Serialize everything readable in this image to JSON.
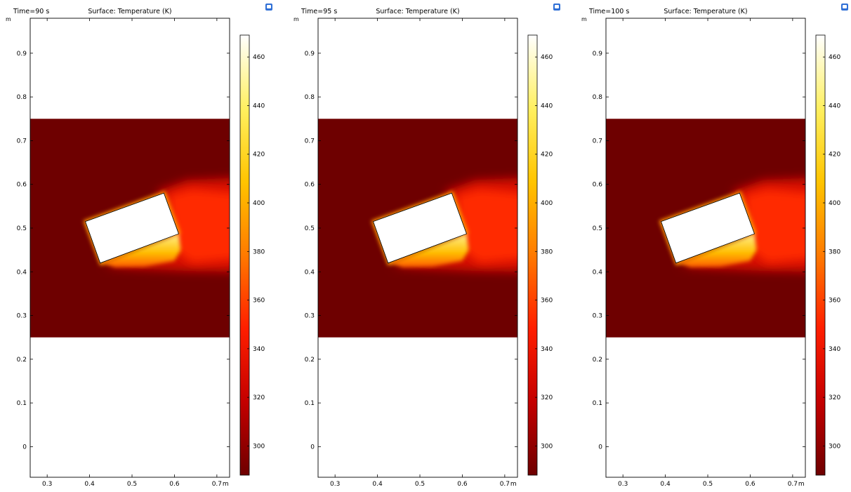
{
  "chart_data": [
    {
      "type": "heatmap",
      "time_label": "Time=90 s",
      "title": "Surface: Temperature (K)",
      "unit_label": "m",
      "x_ticks": [
        0.3,
        0.4,
        0.5,
        0.6,
        0.7
      ],
      "y_ticks": [
        0,
        0.1,
        0.2,
        0.3,
        0.4,
        0.5,
        0.6,
        0.7,
        0.8,
        0.9
      ],
      "xlim": [
        0.26,
        0.73
      ],
      "ylim": [
        -0.07,
        0.98
      ],
      "colorbar_ticks": [
        300,
        320,
        340,
        360,
        380,
        400,
        420,
        440,
        460
      ],
      "colorbar_range": [
        288,
        469
      ],
      "colormap": [
        "#6e0000",
        "#c40000",
        "#ff1e00",
        "#ff7a00",
        "#ffc400",
        "#fff060",
        "#ffffff"
      ],
      "domain": {
        "x": [
          0.26,
          0.73
        ],
        "y": [
          0.25,
          0.75
        ],
        "ambient_temperature": 293
      },
      "obstacle": {
        "polygon": [
          [
            0.39,
            0.515
          ],
          [
            0.575,
            0.58
          ],
          [
            0.61,
            0.487
          ],
          [
            0.425,
            0.42
          ]
        ],
        "temperature": 469
      }
    },
    {
      "type": "heatmap",
      "time_label": "Time=95 s",
      "title": "Surface: Temperature (K)",
      "unit_label": "m",
      "x_ticks": [
        0.3,
        0.4,
        0.5,
        0.6,
        0.7
      ],
      "y_ticks": [
        0,
        0.1,
        0.2,
        0.3,
        0.4,
        0.5,
        0.6,
        0.7,
        0.8,
        0.9
      ],
      "xlim": [
        0.26,
        0.73
      ],
      "ylim": [
        -0.07,
        0.98
      ],
      "colorbar_ticks": [
        300,
        320,
        340,
        360,
        380,
        400,
        420,
        440,
        460
      ],
      "colorbar_range": [
        288,
        469
      ],
      "colormap": [
        "#6e0000",
        "#c40000",
        "#ff1e00",
        "#ff7a00",
        "#ffc400",
        "#fff060",
        "#ffffff"
      ],
      "domain": {
        "x": [
          0.26,
          0.73
        ],
        "y": [
          0.25,
          0.75
        ],
        "ambient_temperature": 293
      },
      "obstacle": {
        "polygon": [
          [
            0.39,
            0.515
          ],
          [
            0.575,
            0.58
          ],
          [
            0.61,
            0.487
          ],
          [
            0.425,
            0.42
          ]
        ],
        "temperature": 469
      }
    },
    {
      "type": "heatmap",
      "time_label": "Time=100 s",
      "title": "Surface: Temperature (K)",
      "unit_label": "m",
      "x_ticks": [
        0.3,
        0.4,
        0.5,
        0.6,
        0.7
      ],
      "y_ticks": [
        0,
        0.1,
        0.2,
        0.3,
        0.4,
        0.5,
        0.6,
        0.7,
        0.8,
        0.9
      ],
      "xlim": [
        0.26,
        0.73
      ],
      "ylim": [
        -0.07,
        0.98
      ],
      "colorbar_ticks": [
        300,
        320,
        340,
        360,
        380,
        400,
        420,
        440,
        460
      ],
      "colorbar_range": [
        288,
        469
      ],
      "colormap": [
        "#6e0000",
        "#c40000",
        "#ff1e00",
        "#ff7a00",
        "#ffc400",
        "#fff060",
        "#ffffff"
      ],
      "domain": {
        "x": [
          0.26,
          0.73
        ],
        "y": [
          0.25,
          0.75
        ],
        "ambient_temperature": 293
      },
      "obstacle": {
        "polygon": [
          [
            0.39,
            0.515
          ],
          [
            0.575,
            0.58
          ],
          [
            0.61,
            0.487
          ],
          [
            0.425,
            0.42
          ]
        ],
        "temperature": 469
      }
    }
  ]
}
